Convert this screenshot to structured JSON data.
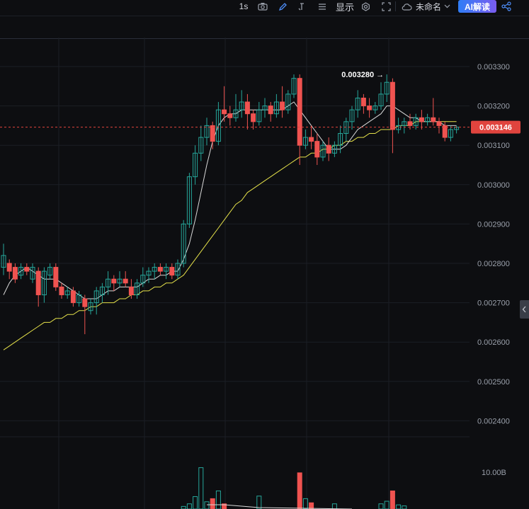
{
  "toolbar": {
    "interval": "1s",
    "display_label": "显示",
    "layout_name": "未命名",
    "ai_button": "AI解读",
    "icons": [
      "camera-icon",
      "pen-icon",
      "bracket-icon",
      "menu-icon",
      "settings-icon",
      "fullscreen-icon",
      "cloud-icon",
      "chevron-down-icon",
      "share-icon"
    ]
  },
  "price_axis": {
    "ticks": [
      "0.003300",
      "0.003200",
      "0.003100",
      "0.003000",
      "0.002900",
      "0.002800",
      "0.002700",
      "0.002600",
      "0.002500",
      "0.002400"
    ],
    "current_price": "0.003146",
    "high_marker": "0.003280 →"
  },
  "volume_axis": {
    "tick": "10.00B"
  },
  "colors": {
    "up": "#26a69a",
    "down": "#ef5350",
    "ma_fast": "#d9d9d9",
    "ma_slow": "#e4e04a",
    "price_tag": "#e0443e",
    "bg": "#0d0e11"
  },
  "chart_data": {
    "type": "candlestick",
    "ylim": [
      0.00234,
      0.00337
    ],
    "candles": [
      [
        0.00279,
        0.00282,
        0.00277,
        0.00285
      ],
      [
        0.0028,
        0.00278,
        0.00276,
        0.00281
      ],
      [
        0.00279,
        0.00276,
        0.00275,
        0.0028
      ],
      [
        0.00277,
        0.00279,
        0.00276,
        0.0028
      ],
      [
        0.00279,
        0.00278,
        0.00277,
        0.0028
      ],
      [
        0.00276,
        0.00279,
        0.00275,
        0.0028
      ],
      [
        0.00278,
        0.00272,
        0.00269,
        0.00279
      ],
      [
        0.00272,
        0.00278,
        0.0027,
        0.00279
      ],
      [
        0.00277,
        0.00279,
        0.00276,
        0.0028
      ],
      [
        0.00279,
        0.00274,
        0.00273,
        0.0028
      ],
      [
        0.00274,
        0.00272,
        0.00271,
        0.00275
      ],
      [
        0.00272,
        0.00273,
        0.00271,
        0.00274
      ],
      [
        0.00273,
        0.0027,
        0.00269,
        0.00274
      ],
      [
        0.0027,
        0.00272,
        0.00269,
        0.00273
      ],
      [
        0.00271,
        0.00269,
        0.00262,
        0.00272
      ],
      [
        0.00268,
        0.0027,
        0.00267,
        0.00271
      ],
      [
        0.0027,
        0.00273,
        0.00267,
        0.00274
      ],
      [
        0.00272,
        0.00274,
        0.0027,
        0.00275
      ],
      [
        0.00274,
        0.00276,
        0.00272,
        0.00278
      ],
      [
        0.00276,
        0.00275,
        0.00273,
        0.00277
      ],
      [
        0.00275,
        0.00276,
        0.00274,
        0.00278
      ],
      [
        0.00276,
        0.00275,
        0.00274,
        0.00278
      ],
      [
        0.00274,
        0.00272,
        0.00271,
        0.00276
      ],
      [
        0.00272,
        0.00275,
        0.00271,
        0.00276
      ],
      [
        0.00275,
        0.00277,
        0.00274,
        0.00279
      ],
      [
        0.00277,
        0.00278,
        0.00275,
        0.00279
      ],
      [
        0.00278,
        0.00279,
        0.00276,
        0.0028
      ],
      [
        0.00279,
        0.00278,
        0.00277,
        0.0028
      ],
      [
        0.00278,
        0.00279,
        0.00276,
        0.0028
      ],
      [
        0.00279,
        0.00277,
        0.00276,
        0.0028
      ],
      [
        0.00277,
        0.0028,
        0.00276,
        0.00281
      ],
      [
        0.0028,
        0.0029,
        0.00279,
        0.00291
      ],
      [
        0.0029,
        0.00302,
        0.00289,
        0.00303
      ],
      [
        0.00302,
        0.00308,
        0.003,
        0.0031
      ],
      [
        0.00308,
        0.00312,
        0.00306,
        0.00315
      ],
      [
        0.00312,
        0.00315,
        0.0031,
        0.00317
      ],
      [
        0.00315,
        0.00311,
        0.00309,
        0.00316
      ],
      [
        0.00311,
        0.00319,
        0.0031,
        0.00321
      ],
      [
        0.00319,
        0.00318,
        0.00316,
        0.00325
      ],
      [
        0.00318,
        0.00317,
        0.00315,
        0.0032
      ],
      [
        0.00317,
        0.00319,
        0.00316,
        0.00323
      ],
      [
        0.00319,
        0.00321,
        0.00317,
        0.00324
      ],
      [
        0.00321,
        0.00318,
        0.00314,
        0.00323
      ],
      [
        0.00318,
        0.00316,
        0.00314,
        0.00319
      ],
      [
        0.00316,
        0.00319,
        0.00315,
        0.00321
      ],
      [
        0.00319,
        0.0032,
        0.00317,
        0.00322
      ],
      [
        0.0032,
        0.00318,
        0.00316,
        0.00321
      ],
      [
        0.00318,
        0.00321,
        0.00317,
        0.00323
      ],
      [
        0.00321,
        0.00319,
        0.00317,
        0.00325
      ],
      [
        0.00319,
        0.00323,
        0.00318,
        0.00324
      ],
      [
        0.00323,
        0.00327,
        0.00322,
        0.00328
      ],
      [
        0.00327,
        0.0031,
        0.00305,
        0.00328
      ],
      [
        0.0031,
        0.00312,
        0.00309,
        0.00314
      ],
      [
        0.00312,
        0.00311,
        0.00309,
        0.00315
      ],
      [
        0.00311,
        0.00307,
        0.00305,
        0.00313
      ],
      [
        0.00307,
        0.0031,
        0.00306,
        0.00311
      ],
      [
        0.0031,
        0.00308,
        0.00306,
        0.00312
      ],
      [
        0.00308,
        0.0031,
        0.00307,
        0.00311
      ],
      [
        0.0031,
        0.00313,
        0.00308,
        0.00315
      ],
      [
        0.00313,
        0.00316,
        0.00311,
        0.00317
      ],
      [
        0.00316,
        0.00319,
        0.00314,
        0.0032
      ],
      [
        0.00319,
        0.00322,
        0.00317,
        0.00324
      ],
      [
        0.00322,
        0.0032,
        0.00318,
        0.00323
      ],
      [
        0.0032,
        0.00319,
        0.00317,
        0.00322
      ],
      [
        0.00319,
        0.0032,
        0.00318,
        0.00321
      ],
      [
        0.0032,
        0.00323,
        0.00319,
        0.00326
      ],
      [
        0.00323,
        0.00326,
        0.00321,
        0.00328
      ],
      [
        0.00326,
        0.00314,
        0.00308,
        0.00327
      ],
      [
        0.00314,
        0.00315,
        0.00313,
        0.00317
      ],
      [
        0.00315,
        0.00316,
        0.00313,
        0.00317
      ],
      [
        0.00316,
        0.00315,
        0.00314,
        0.00318
      ],
      [
        0.00315,
        0.00317,
        0.00314,
        0.00318
      ],
      [
        0.00317,
        0.00316,
        0.00314,
        0.00319
      ],
      [
        0.00316,
        0.00317,
        0.00315,
        0.00318
      ],
      [
        0.00317,
        0.00316,
        0.00315,
        0.00322
      ],
      [
        0.00316,
        0.00315,
        0.00313,
        0.00317
      ],
      [
        0.00315,
        0.00312,
        0.00311,
        0.00316
      ],
      [
        0.00312,
        0.00314,
        0.00311,
        0.00315
      ],
      [
        0.00314,
        0.003146,
        0.00313,
        0.00315
      ]
    ],
    "ma_fast": [
      0.00272,
      0.00275,
      0.00277,
      0.00278,
      0.00279,
      0.00278,
      0.00277,
      0.00276,
      0.00276,
      0.00276,
      0.00275,
      0.00274,
      0.00273,
      0.00272,
      0.00271,
      0.00271,
      0.00271,
      0.00272,
      0.00273,
      0.00273,
      0.00274,
      0.00274,
      0.00274,
      0.00274,
      0.00275,
      0.00276,
      0.00276,
      0.00277,
      0.00277,
      0.00278,
      0.00278,
      0.00281,
      0.00285,
      0.00291,
      0.00298,
      0.00305,
      0.00311,
      0.00315,
      0.00317,
      0.00318,
      0.00318,
      0.00319,
      0.00319,
      0.00319,
      0.00319,
      0.00319,
      0.00319,
      0.00319,
      0.00319,
      0.0032,
      0.00321,
      0.00319,
      0.00317,
      0.00315,
      0.00313,
      0.00311,
      0.00309,
      0.00309,
      0.00309,
      0.0031,
      0.00312,
      0.00314,
      0.00315,
      0.00316,
      0.00317,
      0.00318,
      0.0032,
      0.0032,
      0.00319,
      0.00318,
      0.00317,
      0.00317,
      0.00316,
      0.00316,
      0.00316,
      0.00316,
      0.00315,
      0.00315,
      0.00315
    ],
    "ma_slow": [
      0.00258,
      0.00259,
      0.0026,
      0.00261,
      0.00262,
      0.00263,
      0.00264,
      0.00265,
      0.00265,
      0.00266,
      0.00266,
      0.00267,
      0.00267,
      0.00268,
      0.00268,
      0.00269,
      0.00269,
      0.0027,
      0.0027,
      0.0027,
      0.00271,
      0.00271,
      0.00272,
      0.00272,
      0.00273,
      0.00273,
      0.00274,
      0.00274,
      0.00275,
      0.00275,
      0.00276,
      0.00277,
      0.00279,
      0.00281,
      0.00283,
      0.00285,
      0.00287,
      0.00289,
      0.00291,
      0.00293,
      0.00295,
      0.00296,
      0.00298,
      0.00299,
      0.003,
      0.00301,
      0.00302,
      0.00303,
      0.00304,
      0.00305,
      0.00306,
      0.00307,
      0.00307,
      0.00308,
      0.00308,
      0.00309,
      0.00309,
      0.0031,
      0.0031,
      0.00311,
      0.00311,
      0.00312,
      0.00312,
      0.00313,
      0.00313,
      0.00314,
      0.00314,
      0.00314,
      0.00315,
      0.00315,
      0.00315,
      0.00316,
      0.00316,
      0.00316,
      0.00316,
      0.00316,
      0.00316,
      0.00316,
      0.00316
    ],
    "volume": [
      [
        31,
        0.5
      ],
      [
        32,
        1.0
      ],
      [
        33,
        2.4
      ],
      [
        34,
        8.0
      ],
      [
        35,
        1.4
      ],
      [
        36,
        2.0
      ],
      [
        37,
        3.5
      ],
      [
        38,
        1.0
      ],
      [
        44,
        2.5
      ],
      [
        51,
        7.0
      ],
      [
        52,
        2.0
      ],
      [
        53,
        1.2
      ],
      [
        57,
        1.0
      ],
      [
        65,
        1.0
      ],
      [
        66,
        1.5
      ],
      [
        67,
        3.5
      ],
      [
        68,
        0.8
      ],
      [
        69,
        0.6
      ]
    ]
  }
}
